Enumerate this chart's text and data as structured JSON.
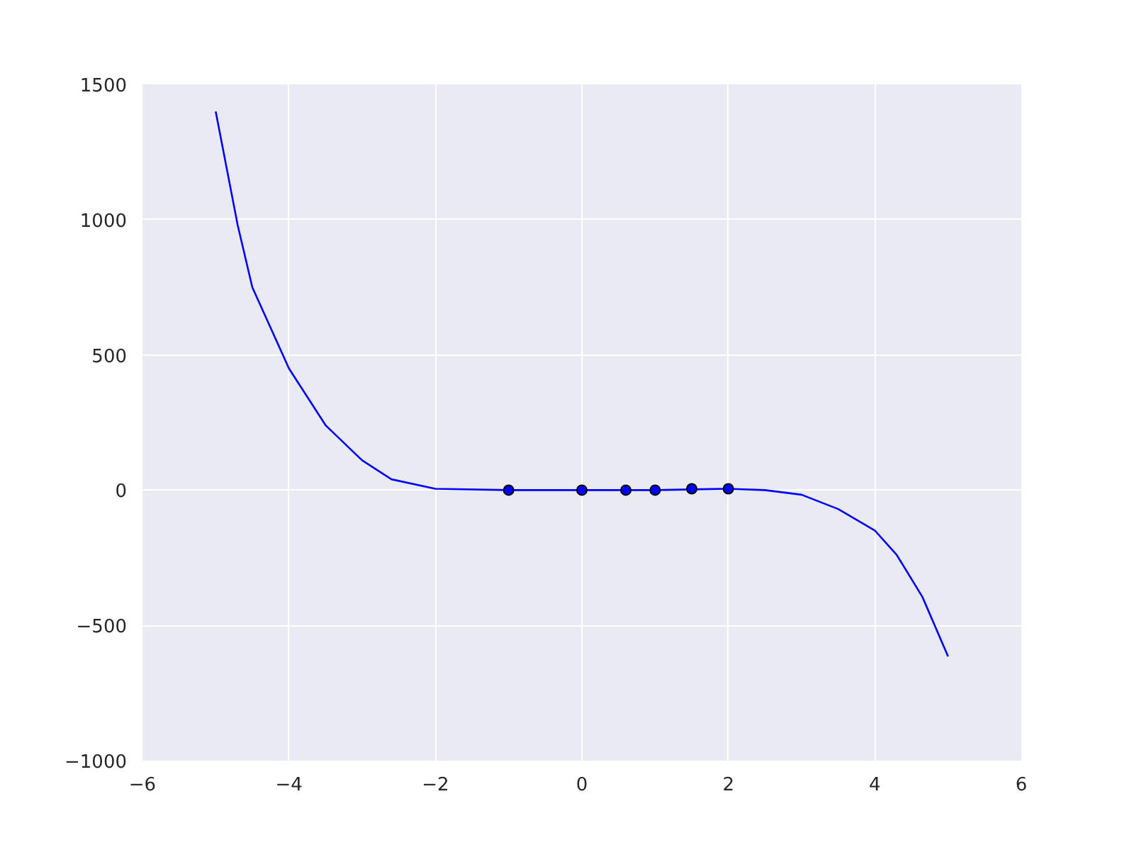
{
  "chart_data": {
    "type": "line",
    "xlim": [
      -6,
      6
    ],
    "ylim": [
      -1000,
      1500
    ],
    "xticks": [
      {
        "value": -6,
        "label": "−6"
      },
      {
        "value": -4,
        "label": "−4"
      },
      {
        "value": -2,
        "label": "−2"
      },
      0,
      2,
      4,
      6
    ],
    "yticks": [
      {
        "value": -1000,
        "label": "−1000"
      },
      {
        "value": -500,
        "label": "−500"
      },
      0,
      500,
      1000,
      1500
    ],
    "grid": true,
    "series": [
      {
        "color": "#0000ff",
        "line_style": "solid",
        "marker": "none",
        "x": [
          -5,
          -4.7,
          -4.5,
          -4,
          -3.5,
          -3,
          -2.6,
          -2,
          -1,
          0,
          1,
          2,
          2.5,
          3,
          3.5,
          4,
          4.3,
          4.65,
          5
        ],
        "values": [
          1400,
          980,
          750,
          450,
          240,
          110,
          40,
          5,
          0,
          0,
          0,
          5,
          0,
          -17,
          -70,
          -149,
          -240,
          -395,
          -615
        ]
      },
      {
        "type": "scatter",
        "color": "#0000ff",
        "marker": "circle",
        "x": [
          -1,
          0,
          0.6,
          1,
          1.5,
          2
        ],
        "values": [
          0,
          0,
          0,
          0,
          5,
          5
        ]
      }
    ]
  }
}
